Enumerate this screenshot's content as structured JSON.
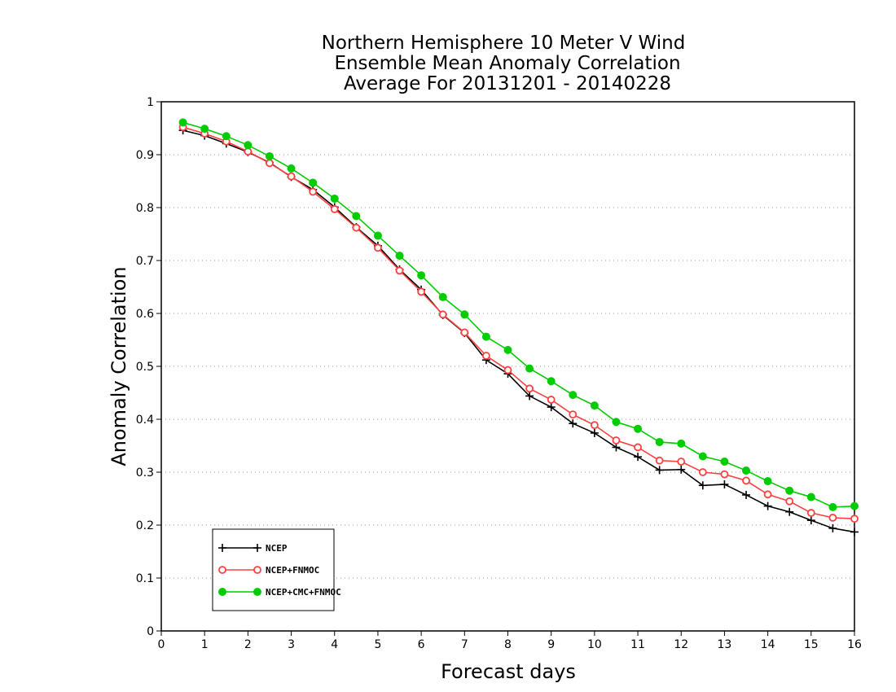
{
  "chart_data": {
    "type": "line",
    "title_lines": [
      "Northern Hemisphere 10 Meter V Wind",
      "Ensemble Mean Anomaly Correlation",
      "Average For 20131201 - 20140228"
    ],
    "xlabel": "Forecast days",
    "ylabel": "Anomaly Correlation",
    "xlim": [
      0,
      16
    ],
    "ylim": [
      0,
      1
    ],
    "x_ticks": [
      "0",
      "1",
      "2",
      "3",
      "4",
      "5",
      "6",
      "7",
      "8",
      "9",
      "10",
      "11",
      "12",
      "13",
      "14",
      "15",
      "16"
    ],
    "y_ticks": [
      "0",
      "0.1",
      "0.2",
      "0.3",
      "0.4",
      "0.5",
      "0.6",
      "0.7",
      "0.8",
      "0.9",
      "1"
    ],
    "grid": "horizontal dotted",
    "legend_position": "bottom-left",
    "x": [
      0.5,
      1,
      1.5,
      2,
      2.5,
      3,
      3.5,
      4,
      4.5,
      5,
      5.5,
      6,
      6.5,
      7,
      7.5,
      8,
      8.5,
      9,
      9.5,
      10,
      10.5,
      11,
      11.5,
      12,
      12.5,
      13,
      13.5,
      14,
      14.5,
      15,
      15.5,
      16
    ],
    "series": [
      {
        "name": "NCEP",
        "color": "#000000",
        "marker": "plus",
        "values": [
          0.946,
          0.936,
          0.921,
          0.905,
          0.885,
          0.858,
          0.834,
          0.801,
          0.763,
          0.728,
          0.683,
          0.645,
          0.597,
          0.563,
          0.512,
          0.486,
          0.444,
          0.423,
          0.392,
          0.374,
          0.347,
          0.329,
          0.304,
          0.305,
          0.275,
          0.277,
          0.257,
          0.236,
          0.225,
          0.209,
          0.194,
          0.187
        ]
      },
      {
        "name": "NCEP+FNMOC",
        "color": "#ff4040",
        "marker": "open-circle",
        "values": [
          0.952,
          0.94,
          0.925,
          0.906,
          0.884,
          0.859,
          0.83,
          0.797,
          0.762,
          0.724,
          0.681,
          0.641,
          0.598,
          0.564,
          0.52,
          0.493,
          0.458,
          0.437,
          0.409,
          0.389,
          0.36,
          0.347,
          0.322,
          0.32,
          0.3,
          0.296,
          0.284,
          0.258,
          0.245,
          0.223,
          0.214,
          0.212
        ]
      },
      {
        "name": "NCEP+CMC+FNMOC",
        "color": "#00cc00",
        "marker": "filled-circle",
        "values": [
          0.961,
          0.949,
          0.935,
          0.918,
          0.897,
          0.874,
          0.847,
          0.817,
          0.784,
          0.747,
          0.709,
          0.672,
          0.631,
          0.598,
          0.556,
          0.531,
          0.496,
          0.472,
          0.446,
          0.426,
          0.395,
          0.382,
          0.357,
          0.354,
          0.33,
          0.32,
          0.303,
          0.283,
          0.265,
          0.253,
          0.234,
          0.236
        ]
      }
    ]
  }
}
